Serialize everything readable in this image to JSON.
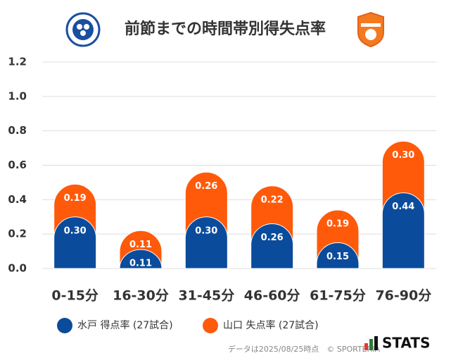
{
  "chart_data": {
    "type": "stacked-bar",
    "title": "前節までの時間帯別得失点率",
    "categories": [
      "0-15分",
      "16-30分",
      "31-45分",
      "46-60分",
      "61-75分",
      "76-90分"
    ],
    "series": [
      {
        "name": "水戸 得点率 (27試合)",
        "color": "#0b4b9b",
        "values": [
          0.3,
          0.11,
          0.3,
          0.26,
          0.15,
          0.44
        ],
        "value_labels": [
          "0.30",
          "0.11",
          "0.30",
          "0.26",
          "0.15",
          "0.44"
        ]
      },
      {
        "name": "山口 失点率 (27試合)",
        "color": "#ff5a0a",
        "values": [
          0.19,
          0.11,
          0.26,
          0.22,
          0.19,
          0.3
        ],
        "value_labels": [
          "0.19",
          "0.11",
          "0.26",
          "0.22",
          "0.19",
          "0.30"
        ]
      }
    ],
    "ylim": [
      0,
      1.2
    ],
    "yticks": [
      {
        "value": 0,
        "label": "0.0"
      },
      0.2,
      0.4,
      0.6,
      0.8,
      {
        "value": 1,
        "label": "1.0"
      },
      1.2
    ],
    "grid": true,
    "footnote": "データは2025/08/25時点　© SPORTERIA",
    "brand": "STATS"
  }
}
